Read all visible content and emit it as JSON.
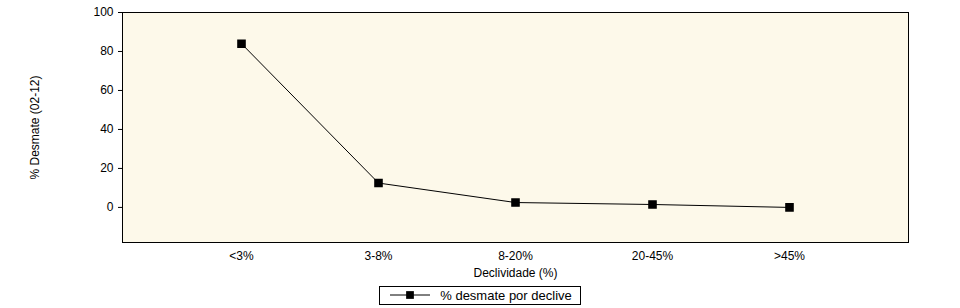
{
  "chart_data": {
    "type": "line",
    "categories": [
      "<3%",
      "3-8%",
      "8-20%",
      "20-45%",
      ">45%"
    ],
    "series": [
      {
        "name": "% desmate por declive",
        "color": "#000000",
        "marker": "square",
        "values": [
          84,
          12.5,
          2.5,
          1.5,
          0
        ]
      }
    ],
    "xlabel": "Declividade (%)",
    "ylabel": "% Desmate (02-12)",
    "ylim": [
      -18,
      100
    ],
    "yticks": [
      0,
      20,
      40,
      60,
      80,
      100
    ],
    "legend": "bottom"
  }
}
